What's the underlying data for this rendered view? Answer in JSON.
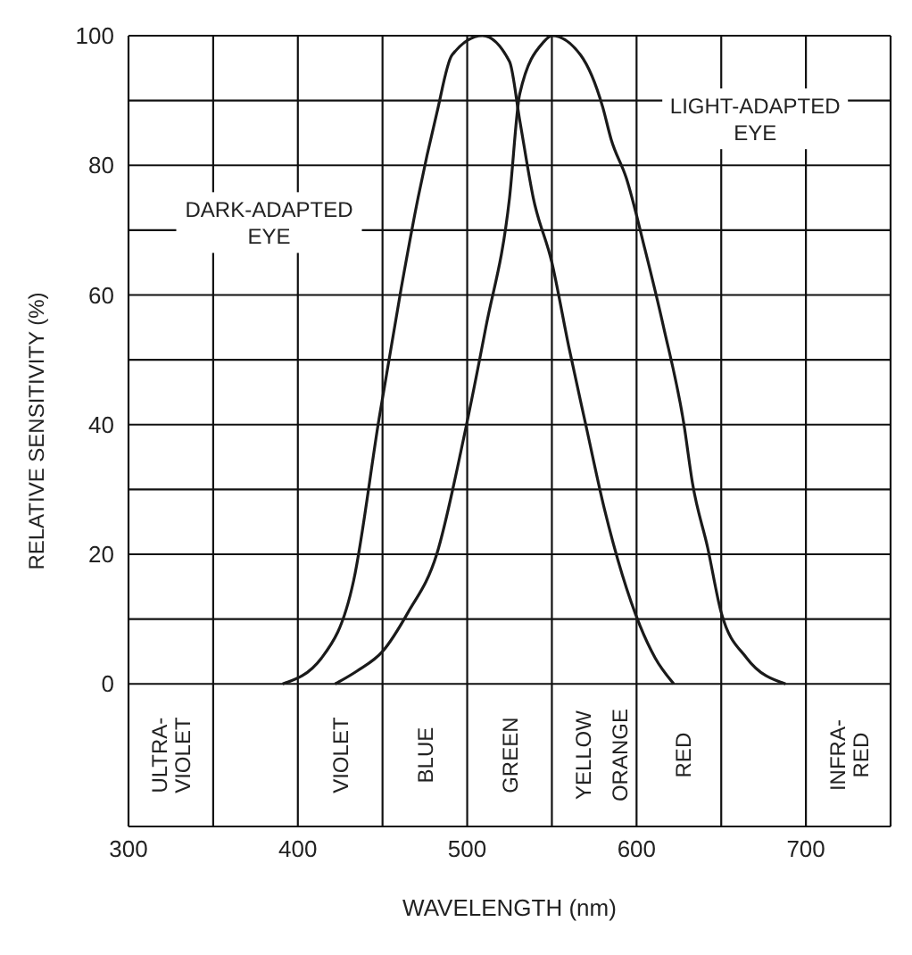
{
  "chart_data": {
    "type": "line",
    "xlabel": "WAVELENGTH (nm)",
    "ylabel": "RELATIVE SENSITIVITY (%)",
    "xlim": [
      300,
      750
    ],
    "xticks": [
      300,
      {
        "value": 350,
        "label": null
      },
      400,
      {
        "value": 450,
        "label": null
      },
      500,
      {
        "value": 550,
        "label": null
      },
      600,
      {
        "value": 650,
        "label": null
      },
      700,
      {
        "value": 750,
        "label": null
      }
    ],
    "ylim": [
      -22,
      100
    ],
    "yticks": [
      0,
      {
        "value": 10,
        "label": null
      },
      20,
      {
        "value": 30,
        "label": null
      },
      40,
      {
        "value": 50,
        "label": null
      },
      60,
      {
        "value": 70,
        "label": null
      },
      80,
      {
        "value": 90,
        "label": null
      },
      100
    ],
    "grid": true,
    "marker": "none",
    "line_style": "solid",
    "series": [
      {
        "name": "DARK-ADAPTED EYE",
        "color": "#1a1a1a",
        "x": [
          391,
          414,
          433,
          448,
          461,
          471,
          482,
          491,
          509,
          525,
          531,
          539,
          550,
          560,
          570,
          581,
          602,
          611,
          622
        ],
        "values": [
          0,
          4,
          16,
          41,
          61,
          75,
          88,
          97,
          100,
          96,
          87,
          75,
          65,
          52,
          40,
          27,
          9,
          4,
          0
        ]
      },
      {
        "name": "LIGHT-ADAPTED EYE",
        "color": "#1a1a1a",
        "x": [
          422,
          435,
          450,
          465,
          482,
          498,
          511,
          525,
          531,
          545,
          550,
          567,
          580,
          585,
          594,
          605,
          616,
          628,
          633,
          642,
          650,
          665,
          688
        ],
        "values": [
          0,
          2,
          5,
          11,
          20,
          38,
          55,
          75,
          91,
          99,
          100,
          97,
          89,
          84,
          78,
          67,
          55,
          40,
          31,
          21,
          11,
          4,
          0
        ]
      }
    ],
    "annotations": [
      "ULTRA-VIOLET",
      "VIOLET",
      "BLUE",
      "GREEN",
      "YELLOW",
      "ORANGE",
      "RED",
      "INFRA-RED"
    ]
  }
}
